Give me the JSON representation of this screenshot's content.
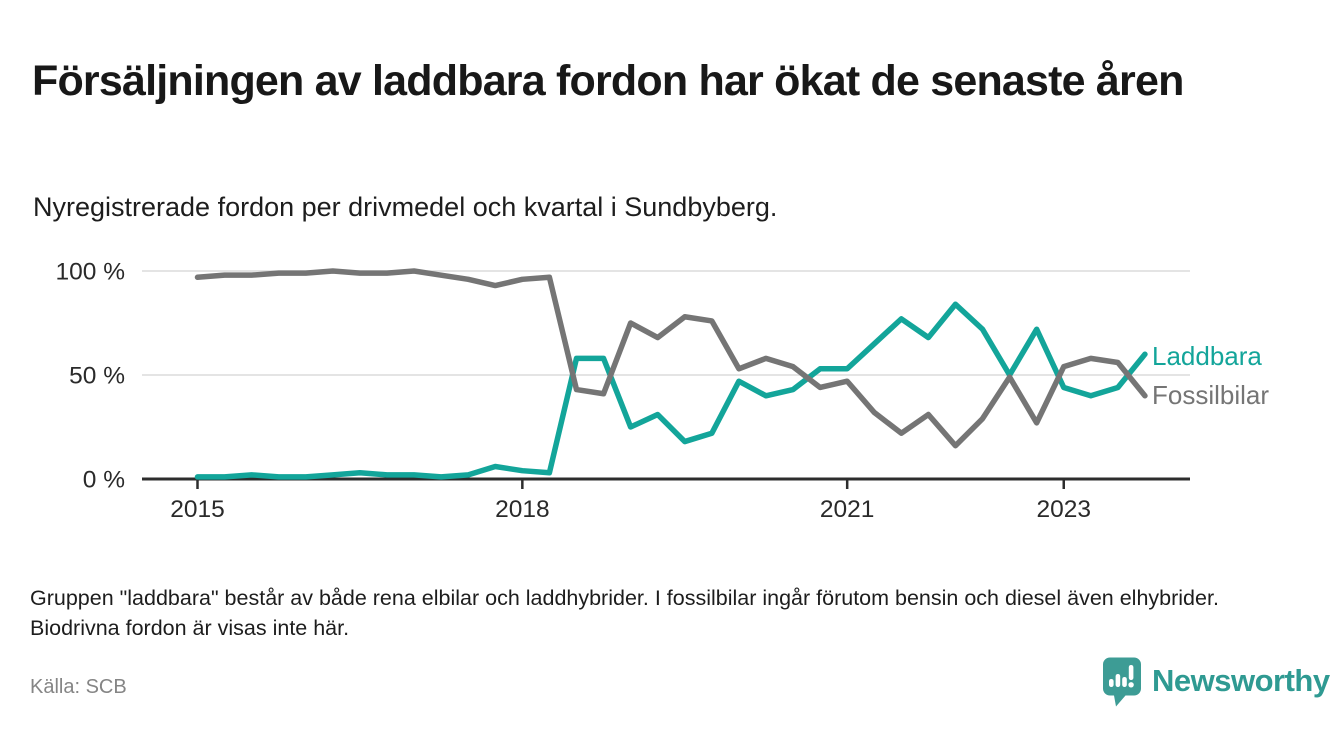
{
  "header": {
    "title": "Försäljningen av laddbara fordon har ökat de senaste åren",
    "subtitle": "Nyregistrerade fordon per drivmedel och kvartal i Sundbyberg."
  },
  "chart_data": {
    "type": "line",
    "title": "Nyregistrerade fordon per drivmedel och kvartal i Sundbyberg",
    "xlabel": "",
    "ylabel": "",
    "ylim": [
      0,
      100
    ],
    "grid": true,
    "unit": "%",
    "quarters": [
      "2015 Q1",
      "2015 Q2",
      "2015 Q3",
      "2015 Q4",
      "2016 Q1",
      "2016 Q2",
      "2016 Q3",
      "2016 Q4",
      "2017 Q1",
      "2017 Q2",
      "2017 Q3",
      "2017 Q4",
      "2018 Q1",
      "2018 Q2",
      "2018 Q3",
      "2018 Q4",
      "2019 Q1",
      "2019 Q2",
      "2019 Q3",
      "2019 Q4",
      "2020 Q1",
      "2020 Q2",
      "2020 Q3",
      "2020 Q4",
      "2021 Q1",
      "2021 Q2",
      "2021 Q3",
      "2021 Q4",
      "2022 Q1",
      "2022 Q2",
      "2022 Q3",
      "2022 Q4",
      "2023 Q1",
      "2023 Q2",
      "2023 Q3",
      "2023 Q4"
    ],
    "series": [
      {
        "name": "Laddbara",
        "color": "#13a59a",
        "values": [
          1,
          1,
          2,
          1,
          1,
          2,
          3,
          2,
          2,
          1,
          2,
          6,
          4,
          3,
          58,
          58,
          25,
          31,
          18,
          22,
          47,
          40,
          43,
          53,
          53,
          65,
          77,
          68,
          84,
          72,
          50,
          72,
          44,
          40,
          44,
          60
        ]
      },
      {
        "name": "Fossilbilar",
        "color": "#757575",
        "values": [
          97,
          98,
          98,
          99,
          99,
          100,
          99,
          99,
          100,
          98,
          96,
          93,
          96,
          97,
          43,
          41,
          75,
          68,
          78,
          76,
          53,
          58,
          54,
          44,
          47,
          32,
          22,
          31,
          16,
          29,
          49,
          27,
          54,
          58,
          56,
          40
        ]
      }
    ],
    "y_ticks": [
      {
        "label": "100 %",
        "value": 100
      },
      {
        "label": "50 %",
        "value": 50
      },
      {
        "label": "0 %",
        "value": 0
      }
    ],
    "x_ticks": [
      {
        "label": "2015",
        "quarter_index": 0
      },
      {
        "label": "2018",
        "quarter_index": 12
      },
      {
        "label": "2021",
        "quarter_index": 24
      },
      {
        "label": "2023",
        "quarter_index": 32
      }
    ],
    "legend_position": "right-end-of-lines"
  },
  "notes": {
    "text": "Gruppen \"laddbara\" består av både rena elbilar och laddhybrider. I fossilbilar ingår förutom bensin och diesel även elhybrider. Biodrivna fordon är visas inte här."
  },
  "source": {
    "text": "Källa: SCB"
  },
  "logo": {
    "text": "Newsworthy",
    "icon": "newsworthy-barchart-pin-icon",
    "text_color": "#2f9a92",
    "icon_color": "#3d9c95"
  },
  "colors": {
    "background": "#ffffff",
    "gridline": "#dcdcdc",
    "axis": "#2d2d2d",
    "title": "#181818",
    "source_text": "#858585"
  }
}
